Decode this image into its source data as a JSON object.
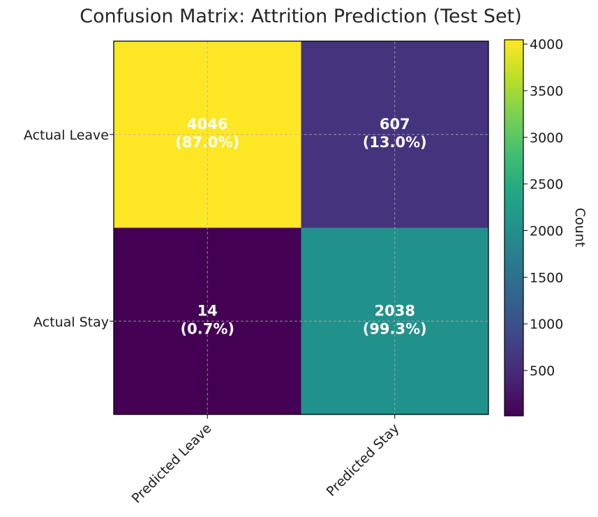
{
  "chart_data": {
    "type": "heatmap",
    "title": "Confusion Matrix: Attrition Prediction (Test Set)",
    "row_labels": [
      "Actual Leave",
      "Actual Stay"
    ],
    "col_labels": [
      "Predicted Leave",
      "Predicted Stay"
    ],
    "counts": [
      [
        4046,
        607
      ],
      [
        14,
        2038
      ]
    ],
    "cell_labels": [
      [
        {
          "count": "4046",
          "pct": "(87.0%)"
        },
        {
          "count": "607",
          "pct": "(13.0%)"
        }
      ],
      [
        {
          "count": "14",
          "pct": "(0.7%)"
        },
        {
          "count": "2038",
          "pct": "(99.3%)"
        }
      ]
    ],
    "colorbar": {
      "label": "Count",
      "vmin": 14,
      "vmax": 4046,
      "ticks": [
        500,
        1000,
        1500,
        2000,
        2500,
        3000,
        3500,
        4000
      ],
      "colormap": "viridis"
    },
    "grid": true
  }
}
